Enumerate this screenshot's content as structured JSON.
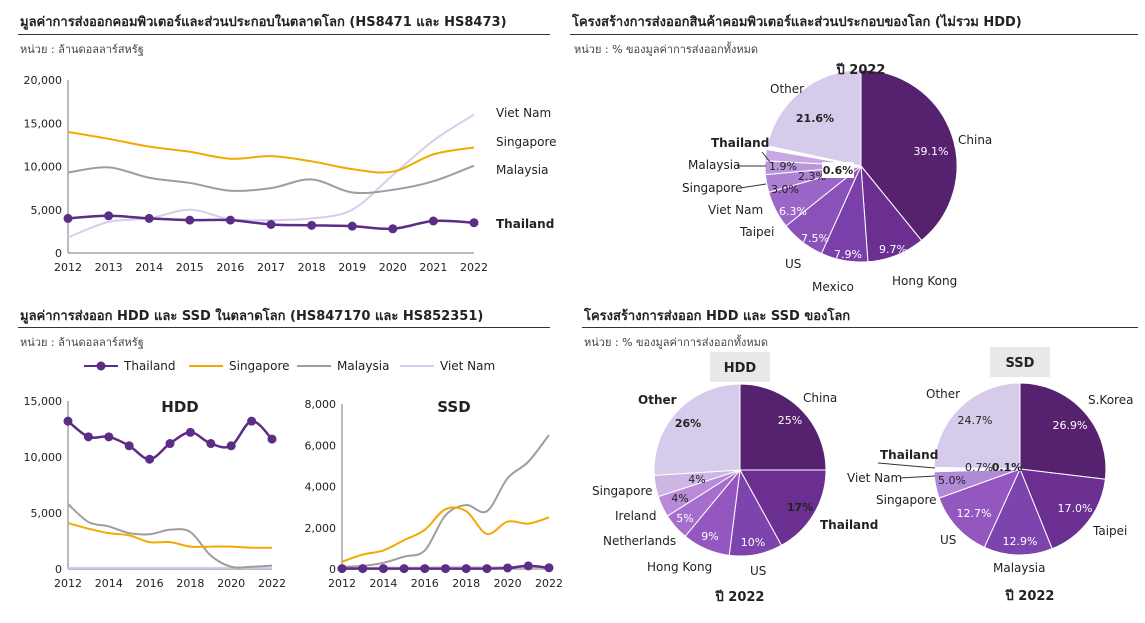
{
  "panels": {
    "tl": {
      "title": "มูลค่าการส่งออกคอมพิวเตอร์และส่วนประกอบในตลาดโลก  (HS8471 และ HS8473)",
      "unit": "หน่วย : ล้านดอลลาร์สหรัฐ"
    },
    "tr": {
      "title": "โครงสร้างการส่งออกสินค้าคอมพิวเตอร์และส่วนประกอบของโลก  (ไม่รวม HDD)",
      "unit": "หน่วย : % ของมูลค่าการส่งออกทั้งหมด"
    },
    "bl": {
      "title": "มูลค่าการส่งออก  HDD และ SSD ในตลาดโลก (HS847170 และ HS852351)",
      "unit": "หน่วย : ล้านดอลลาร์สหรัฐ"
    },
    "br": {
      "title": "โครงสร้างการส่งออก  HDD และ SSD ของโลก",
      "unit": "หน่วย : % ของมูลค่าการส่งออกทั้งหมด"
    }
  },
  "legend": {
    "items": [
      "Thailand",
      "Singapore",
      "Malaysia",
      "Viet Nam"
    ]
  },
  "colors": {
    "Thailand": "#5b2d86",
    "Singapore": "#f2a900",
    "Malaysia": "#9e9e9e",
    "Viet Nam": "#d8ccec"
  },
  "chart_data": [
    {
      "id": "computers",
      "type": "line",
      "x": [
        "2012",
        "2013",
        "2014",
        "2015",
        "2016",
        "2017",
        "2018",
        "2019",
        "2020",
        "2021",
        "2022"
      ],
      "ylim": [
        0,
        20000
      ],
      "yticks": [
        "0",
        "5,000",
        "10,000",
        "15,000",
        "20,000"
      ],
      "series": [
        {
          "name": "Viet Nam",
          "values": [
            1800,
            3600,
            4000,
            5000,
            3900,
            3800,
            4000,
            5000,
            9000,
            13000,
            16000
          ]
        },
        {
          "name": "Singapore",
          "values": [
            14000,
            13200,
            12300,
            11700,
            10900,
            11200,
            10600,
            9700,
            9400,
            11400,
            12200
          ]
        },
        {
          "name": "Malaysia",
          "values": [
            9300,
            9900,
            8700,
            8100,
            7200,
            7500,
            8500,
            7000,
            7300,
            8300,
            10100
          ]
        },
        {
          "name": "Thailand",
          "values": [
            4000,
            4300,
            4000,
            3800,
            3800,
            3300,
            3200,
            3100,
            2800,
            3700,
            3500
          ]
        }
      ]
    },
    {
      "id": "computers_pie",
      "type": "pie",
      "title": "ปี 2022",
      "slices": [
        {
          "label": "China",
          "value": 39.1,
          "text": "39.1%"
        },
        {
          "label": "Hong Kong",
          "value": 9.7,
          "text": "9.7%"
        },
        {
          "label": "Mexico",
          "value": 7.9,
          "text": "7.9%"
        },
        {
          "label": "US",
          "value": 7.5,
          "text": "7.5%"
        },
        {
          "label": "Taipei",
          "value": 6.3,
          "text": "6.3%"
        },
        {
          "label": "Viet Nam",
          "value": 3.0,
          "text": "3.0%"
        },
        {
          "label": "Singapore",
          "value": 2.3,
          "text": "2.3%"
        },
        {
          "label": "Malaysia",
          "value": 1.9,
          "text": "1.9%"
        },
        {
          "label": "Thailand",
          "value": 0.6,
          "text": "0.6%"
        },
        {
          "label": "Other",
          "value": 21.6,
          "text": "21.6%"
        }
      ]
    },
    {
      "id": "hdd_line",
      "type": "line",
      "title": "HDD",
      "x": [
        "2012",
        "2013",
        "2014",
        "2015",
        "2016",
        "2017",
        "2018",
        "2019",
        "2020",
        "2021",
        "2022"
      ],
      "xticks": [
        "2012",
        "2014",
        "2016",
        "2018",
        "2020",
        "2022"
      ],
      "ylim": [
        0,
        15000
      ],
      "yticks": [
        "0",
        "5,000",
        "10,000",
        "15,000"
      ],
      "series": [
        {
          "name": "Thailand",
          "values": [
            13200,
            11800,
            11800,
            11000,
            9800,
            11200,
            12200,
            11200,
            11000,
            13200,
            11600
          ]
        },
        {
          "name": "Singapore",
          "values": [
            4100,
            3600,
            3200,
            3000,
            2400,
            2400,
            2000,
            2000,
            2000,
            1900,
            1900
          ]
        },
        {
          "name": "Malaysia",
          "values": [
            5800,
            4200,
            3800,
            3200,
            3100,
            3500,
            3300,
            1200,
            200,
            200,
            300
          ]
        },
        {
          "name": "Viet Nam",
          "values": [
            100,
            100,
            100,
            100,
            100,
            100,
            100,
            100,
            100,
            100,
            100
          ]
        }
      ]
    },
    {
      "id": "ssd_line",
      "type": "line",
      "title": "SSD",
      "x": [
        "2012",
        "2013",
        "2014",
        "2015",
        "2016",
        "2017",
        "2018",
        "2019",
        "2020",
        "2021",
        "2022"
      ],
      "xticks": [
        "2012",
        "2014",
        "2016",
        "2018",
        "2020",
        "2022"
      ],
      "ylim": [
        0,
        8000
      ],
      "yticks": [
        "0",
        "2,000",
        "4,000",
        "6,000",
        "8,000"
      ],
      "series": [
        {
          "name": "Singapore",
          "values": [
            350,
            700,
            900,
            1400,
            1900,
            2900,
            2800,
            1700,
            2300,
            2200,
            2500
          ]
        },
        {
          "name": "Malaysia",
          "values": [
            100,
            150,
            300,
            600,
            900,
            2600,
            3100,
            2800,
            4400,
            5200,
            6500
          ]
        },
        {
          "name": "Viet Nam",
          "values": [
            50,
            60,
            70,
            80,
            80,
            100,
            100,
            100,
            100,
            100,
            100
          ]
        },
        {
          "name": "Thailand",
          "values": [
            20,
            20,
            20,
            20,
            20,
            20,
            20,
            20,
            50,
            150,
            60
          ]
        }
      ]
    },
    {
      "id": "hdd_pie",
      "type": "pie",
      "title": "HDD",
      "footer": "ปี 2022",
      "slices": [
        {
          "label": "China",
          "value": 25,
          "text": "25%"
        },
        {
          "label": "Thailand",
          "value": 17,
          "text": "17%"
        },
        {
          "label": "US",
          "value": 10,
          "text": "10%"
        },
        {
          "label": "Hong Kong",
          "value": 9,
          "text": "9%"
        },
        {
          "label": "Netherlands",
          "value": 5,
          "text": "5%"
        },
        {
          "label": "Ireland",
          "value": 4,
          "text": "4%"
        },
        {
          "label": "Singapore",
          "value": 4,
          "text": "4%"
        },
        {
          "label": "Other",
          "value": 26,
          "text": "26%"
        }
      ]
    },
    {
      "id": "ssd_pie",
      "type": "pie",
      "title": "SSD",
      "footer": "ปี 2022",
      "slices": [
        {
          "label": "S.Korea",
          "value": 26.9,
          "text": "26.9%"
        },
        {
          "label": "Taipei",
          "value": 17.0,
          "text": "17.0%"
        },
        {
          "label": "Malaysia",
          "value": 12.9,
          "text": "12.9%"
        },
        {
          "label": "US",
          "value": 12.7,
          "text": "12.7%"
        },
        {
          "label": "Singapore",
          "value": 5.0,
          "text": "5.0%"
        },
        {
          "label": "Viet Nam",
          "value": 0.7,
          "text": "0.7%"
        },
        {
          "label": "Thailand",
          "value": 0.1,
          "text": "0.1%"
        },
        {
          "label": "Other",
          "value": 24.7,
          "text": "24.7%"
        }
      ]
    }
  ]
}
